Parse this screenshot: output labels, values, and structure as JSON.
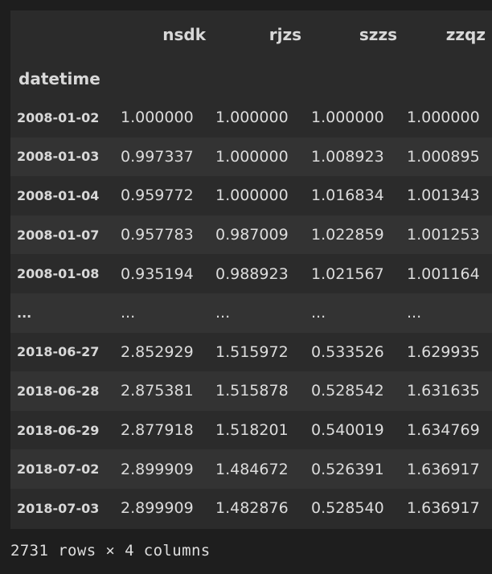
{
  "table": {
    "columns": [
      "nsdk",
      "rjzs",
      "szzs",
      "zzqz"
    ],
    "index_name": "datetime",
    "rows": [
      {
        "index": "2008-01-02",
        "values": [
          "1.000000",
          "1.000000",
          "1.000000",
          "1.000000"
        ]
      },
      {
        "index": "2008-01-03",
        "values": [
          "0.997337",
          "1.000000",
          "1.008923",
          "1.000895"
        ]
      },
      {
        "index": "2008-01-04",
        "values": [
          "0.959772",
          "1.000000",
          "1.016834",
          "1.001343"
        ]
      },
      {
        "index": "2008-01-07",
        "values": [
          "0.957783",
          "0.987009",
          "1.022859",
          "1.001253"
        ]
      },
      {
        "index": "2008-01-08",
        "values": [
          "0.935194",
          "0.988923",
          "1.021567",
          "1.001164"
        ]
      },
      {
        "index": "...",
        "values": [
          "...",
          "...",
          "...",
          "..."
        ]
      },
      {
        "index": "2018-06-27",
        "values": [
          "2.852929",
          "1.515972",
          "0.533526",
          "1.629935"
        ]
      },
      {
        "index": "2018-06-28",
        "values": [
          "2.875381",
          "1.515878",
          "0.528542",
          "1.631635"
        ]
      },
      {
        "index": "2018-06-29",
        "values": [
          "2.877918",
          "1.518201",
          "0.540019",
          "1.634769"
        ]
      },
      {
        "index": "2018-07-02",
        "values": [
          "2.899909",
          "1.484672",
          "0.526391",
          "1.636917"
        ]
      },
      {
        "index": "2018-07-03",
        "values": [
          "2.899909",
          "1.482876",
          "0.528540",
          "1.636917"
        ]
      }
    ]
  },
  "shape_text": "2731 rows × 4 columns"
}
